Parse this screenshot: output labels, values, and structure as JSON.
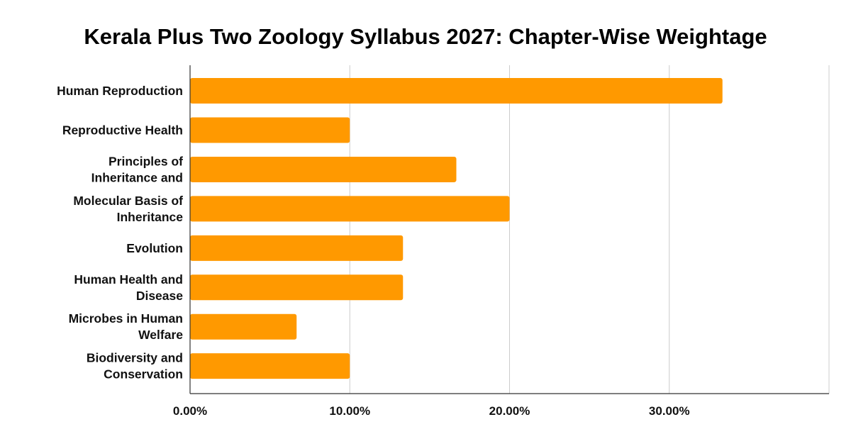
{
  "chart_data": {
    "type": "bar",
    "orientation": "horizontal",
    "title": "Kerala Plus Two Zoology Syllabus 2027: Chapter-Wise Weightage",
    "xlabel": "",
    "ylabel": "",
    "categories": [
      [
        "Human Reproduction"
      ],
      [
        "Reproductive Health"
      ],
      [
        "Principles of",
        "Inheritance and"
      ],
      [
        "Molecular Basis of",
        "Inheritance"
      ],
      [
        "Evolution"
      ],
      [
        "Human Health and",
        "Disease"
      ],
      [
        "Microbes in Human",
        "Welfare"
      ],
      [
        "Biodiversity and",
        "Conservation"
      ]
    ],
    "values": [
      33.33,
      10.0,
      16.67,
      20.0,
      13.33,
      13.33,
      6.67,
      10.0
    ],
    "xlim": [
      0,
      40
    ],
    "xticks": [
      0,
      10,
      20,
      30
    ],
    "xtick_labels": [
      "0.00%",
      "10.00%",
      "20.00%",
      "30.00%"
    ],
    "grid": "vertical",
    "legend": "none",
    "bar_color": "#ff9900"
  }
}
